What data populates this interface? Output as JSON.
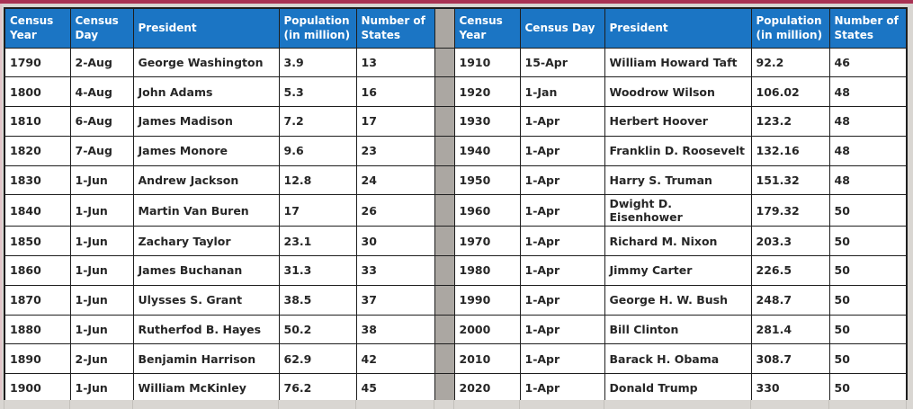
{
  "colors": {
    "top_line": "#a83253",
    "header_bg": "#1b75c4",
    "header_text": "#ffffff",
    "separator_fill": "#aba7a2",
    "page_background": "#d9d6d2",
    "cell_text": "#262626"
  },
  "table_left": {
    "headers": [
      "Census Year",
      "Census Day",
      "President",
      "Population (in million)",
      "Number of States"
    ],
    "rows": [
      [
        "1790",
        "2-Aug",
        "George Washington",
        "3.9",
        "13"
      ],
      [
        "1800",
        "4-Aug",
        "John Adams",
        "5.3",
        "16"
      ],
      [
        "1810",
        "6-Aug",
        "James Madison",
        "7.2",
        "17"
      ],
      [
        "1820",
        "7-Aug",
        "James Monore",
        "9.6",
        "23"
      ],
      [
        "1830",
        "1-Jun",
        "Andrew Jackson",
        "12.8",
        "24"
      ],
      [
        "1840",
        "1-Jun",
        "Martin Van Buren",
        "17",
        "26"
      ],
      [
        "1850",
        "1-Jun",
        "Zachary Taylor",
        "23.1",
        "30"
      ],
      [
        "1860",
        "1-Jun",
        "James Buchanan",
        "31.3",
        "33"
      ],
      [
        "1870",
        "1-Jun",
        "Ulysses S. Grant",
        "38.5",
        "37"
      ],
      [
        "1880",
        "1-Jun",
        "Rutherfod B. Hayes",
        "50.2",
        "38"
      ],
      [
        "1890",
        "2-Jun",
        "Benjamin Harrison",
        "62.9",
        "42"
      ],
      [
        "1900",
        "1-Jun",
        "William McKinley",
        "76.2",
        "45"
      ]
    ]
  },
  "table_right": {
    "headers": [
      "Census Year",
      "Census Day",
      "President",
      "Population (in million)",
      "Number of States"
    ],
    "rows": [
      [
        "1910",
        "15-Apr",
        "William Howard Taft",
        "92.2",
        "46"
      ],
      [
        "1920",
        "1-Jan",
        "Woodrow Wilson",
        "106.02",
        "48"
      ],
      [
        "1930",
        "1-Apr",
        "Herbert Hoover",
        "123.2",
        "48"
      ],
      [
        "1940",
        "1-Apr",
        "Franklin D. Roosevelt",
        "132.16",
        "48"
      ],
      [
        "1950",
        "1-Apr",
        "Harry S. Truman",
        "151.32",
        "48"
      ],
      [
        "1960",
        "1-Apr",
        "Dwight D. Eisenhower",
        "179.32",
        "50"
      ],
      [
        "1970",
        "1-Apr",
        "Richard M. Nixon",
        "203.3",
        "50"
      ],
      [
        "1980",
        "1-Apr",
        "Jimmy Carter",
        "226.5",
        "50"
      ],
      [
        "1990",
        "1-Apr",
        "George H. W. Bush",
        "248.7",
        "50"
      ],
      [
        "2000",
        "1-Apr",
        "Bill Clinton",
        "281.4",
        "50"
      ],
      [
        "2010",
        "1-Apr",
        "Barack H. Obama",
        "308.7",
        "50"
      ],
      [
        "2020",
        "1-Apr",
        "Donald Trump",
        "330",
        "50"
      ]
    ]
  }
}
